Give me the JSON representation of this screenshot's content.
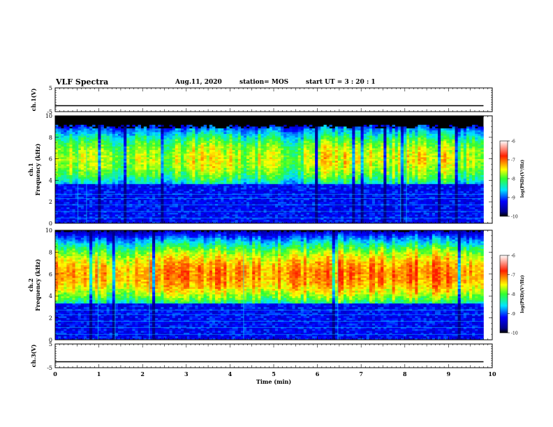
{
  "header": {
    "title": "VLF Spectra",
    "date": "Aug.11, 2020",
    "station": "station= MOS",
    "start": "start  UT =   3 : 20 : 1"
  },
  "colors": {
    "spec_low": "#00008b",
    "spec_mid_low": "#0000ff",
    "spec_mid": "#00e5ff",
    "spec_green": "#30ff30",
    "spec_yellow": "#ffff00",
    "spec_high": "#ff2000",
    "background": "#000000"
  },
  "chart_data": [
    {
      "type": "line",
      "panel": "ch1-waveform",
      "ylabel": "ch.1(V)",
      "ylim": [
        -5,
        5
      ],
      "yticks": [
        "5",
        "-5"
      ],
      "series": [
        {
          "values": [
            -2.5,
            -2.5,
            -2.5,
            -2.5,
            -2.5,
            -2.5,
            -2.5,
            -2.5,
            -2.5,
            -2.5,
            -2.5
          ]
        }
      ],
      "x": [
        0,
        1,
        2,
        3,
        4,
        5,
        6,
        7,
        8,
        9,
        9.8
      ]
    },
    {
      "type": "heatmap",
      "panel": "ch1-spectrogram",
      "ylabel_top": "ch.1",
      "ylabel": "Frequency (kHz)",
      "ylim": [
        0,
        10
      ],
      "yticks": [
        "0",
        "2",
        "4",
        "6",
        "8",
        "10"
      ],
      "xlim": [
        0,
        9.8
      ],
      "band_center_khz": 6.0,
      "band_intensity": [
        -7.4,
        -7.6,
        -7.5,
        -7.3,
        -7.5,
        -7.6,
        -7.2,
        -7.4,
        -7.3,
        -7.5
      ],
      "noise_floor_khz": 3.6,
      "cutoff_khz": 9.0,
      "colorbar": {
        "label": "log(PSD)(V²/Hz)",
        "range": [
          -10,
          -6
        ],
        "ticks": [
          "-6",
          "-7",
          "-8",
          "-9",
          "-10"
        ]
      }
    },
    {
      "type": "heatmap",
      "panel": "ch2-spectrogram",
      "ylabel_top": "ch.2",
      "ylabel": "Frequency (kHz)",
      "ylim": [
        0,
        10
      ],
      "yticks": [
        "0",
        "2",
        "4",
        "6",
        "8",
        "10"
      ],
      "xlim": [
        0,
        9.8
      ],
      "band_center_khz": 6.0,
      "band_intensity": [
        -7.0,
        -7.1,
        -7.0,
        -6.9,
        -7.0,
        -7.0,
        -6.8,
        -6.9,
        -6.8,
        -7.0
      ],
      "noise_floor_khz": 3.4,
      "cutoff_khz": 10.0,
      "colorbar": {
        "label": "log(PSD)(V²/Hz)",
        "range": [
          -10,
          -6
        ],
        "ticks": [
          "-6",
          "-7",
          "-8",
          "-9",
          "-10"
        ]
      }
    },
    {
      "type": "line",
      "panel": "ch3-waveform",
      "ylabel": "ch.3(V)",
      "ylim": [
        -5,
        5
      ],
      "yticks": [
        "5",
        "-5"
      ],
      "series": [
        {
          "values": [
            -2.5,
            -2.5,
            -2.5,
            -2.5,
            -2.5,
            -2.5,
            -2.5,
            -2.5,
            -2.5,
            -2.5,
            -2.5
          ]
        }
      ],
      "x": [
        0,
        1,
        2,
        3,
        4,
        5,
        6,
        7,
        8,
        9,
        9.8
      ],
      "xlabel": "Time (min)",
      "xlim": [
        0,
        10
      ],
      "xticks": [
        "0",
        "1",
        "2",
        "3",
        "4",
        "5",
        "6",
        "7",
        "8",
        "9",
        "10"
      ]
    }
  ]
}
